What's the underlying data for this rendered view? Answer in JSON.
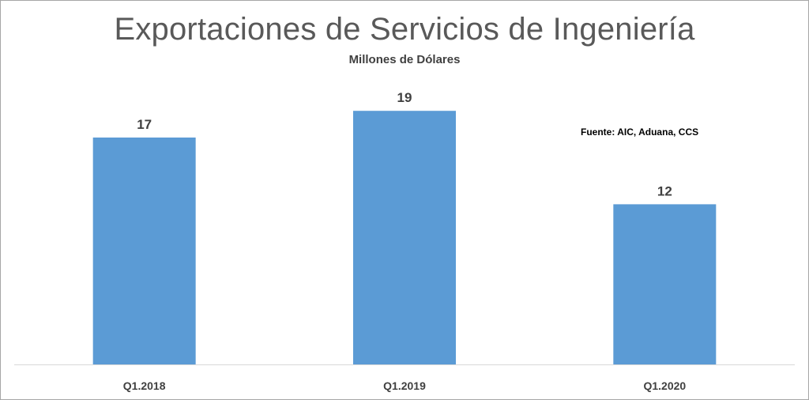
{
  "chart_data": {
    "type": "bar",
    "title": "Exportaciones de Servicios de Ingeniería",
    "subtitle": "Millones de Dólares",
    "note": "Fuente: AIC, Aduana, CCS",
    "categories": [
      "Q1.2018",
      "Q1.2019",
      "Q1.2020"
    ],
    "values": [
      17,
      19,
      12
    ],
    "bar_color": "#5b9bd5",
    "ylim": [
      0,
      21.5
    ],
    "grid": false,
    "legend": "none"
  }
}
